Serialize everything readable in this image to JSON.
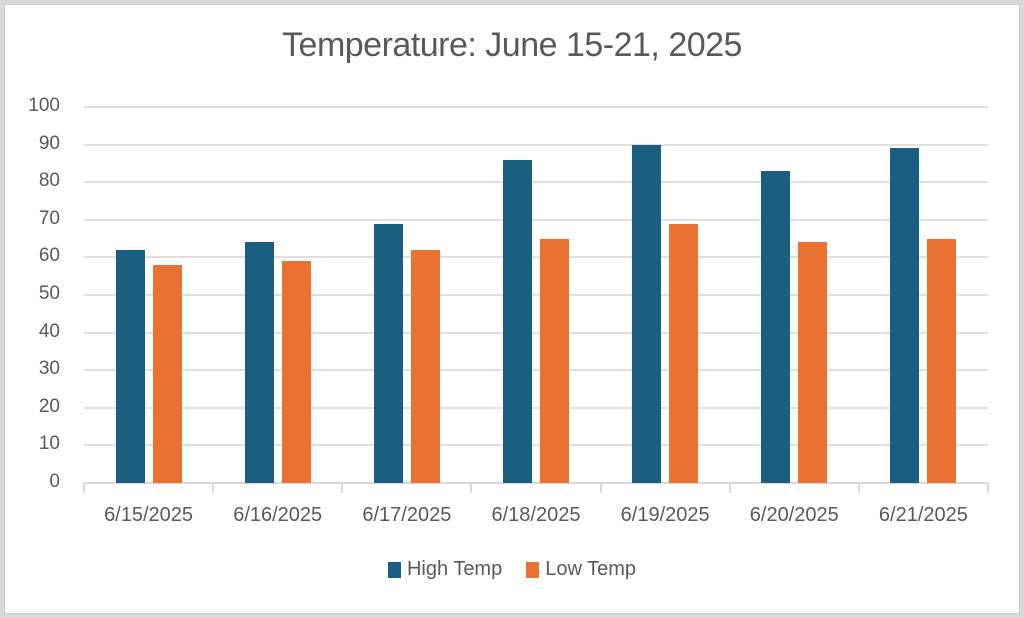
{
  "chart_data": {
    "type": "bar",
    "title": "Temperature:  June 15-21, 2025",
    "xlabel": "",
    "ylabel": "",
    "categories": [
      "6/15/2025",
      "6/16/2025",
      "6/17/2025",
      "6/18/2025",
      "6/19/2025",
      "6/20/2025",
      "6/21/2025"
    ],
    "series": [
      {
        "name": "High Temp",
        "color": "#1a5e82",
        "values": [
          62,
          64,
          69,
          86,
          90,
          83,
          89
        ]
      },
      {
        "name": "Low Temp",
        "color": "#e97132",
        "values": [
          58,
          59,
          62,
          65,
          69,
          64,
          65
        ]
      }
    ],
    "ylim": [
      0,
      100
    ],
    "yticks": [
      0,
      10,
      20,
      30,
      40,
      50,
      60,
      70,
      80,
      90,
      100
    ],
    "grid": true,
    "legend_position": "bottom"
  }
}
